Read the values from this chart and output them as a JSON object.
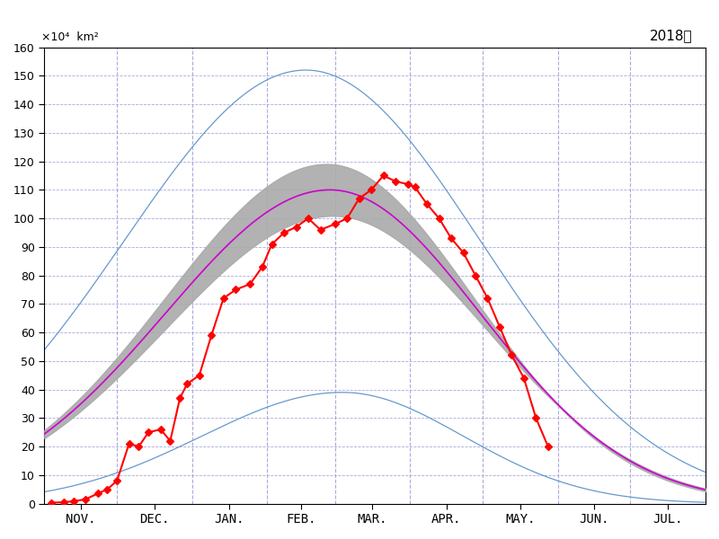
{
  "title": "2018年",
  "ylabel": "×10⁴  km²",
  "ylim": [
    0,
    160
  ],
  "yticks": [
    0,
    10,
    20,
    30,
    40,
    50,
    60,
    70,
    80,
    90,
    100,
    110,
    120,
    130,
    140,
    150,
    160
  ],
  "months": [
    "NOV.",
    "DEC.",
    "JAN.",
    "FEB.",
    "MAR.",
    "APR.",
    "MAY.",
    "JUN.",
    "JUL."
  ],
  "month_starts": [
    0,
    30,
    61,
    92,
    120,
    151,
    181,
    212,
    242,
    273
  ],
  "total_days": 273,
  "peak_day": 118,
  "mean_peak": 110,
  "max_peak": 152,
  "min_peak": 39,
  "colors": {
    "mean": "#cc00cc",
    "std_band": "#aaaaaa",
    "max_min": "#6699cc",
    "current": "#ff0000",
    "grid": "#aaaadd"
  },
  "background": "#ffffff",
  "red_days": [
    3,
    8,
    12,
    17,
    22,
    26,
    30,
    35,
    39,
    43,
    48,
    52,
    56,
    59,
    64,
    69,
    74,
    79,
    85,
    90,
    94,
    99,
    104,
    109,
    114,
    120,
    125,
    130,
    135,
    140,
    145,
    150,
    153,
    158,
    163,
    168,
    173,
    178,
    183,
    188,
    193,
    198,
    203,
    208
  ],
  "red_vals": [
    0.3,
    0.5,
    0.8,
    1.5,
    3.5,
    5.0,
    8.0,
    21,
    20,
    25,
    26,
    22,
    37,
    42,
    45,
    59,
    72,
    75,
    77,
    83,
    91,
    95,
    97,
    100,
    96,
    98,
    100,
    107,
    110,
    115,
    113,
    112,
    111,
    105,
    100,
    93,
    88,
    80,
    72,
    62,
    52,
    44,
    30,
    20
  ]
}
